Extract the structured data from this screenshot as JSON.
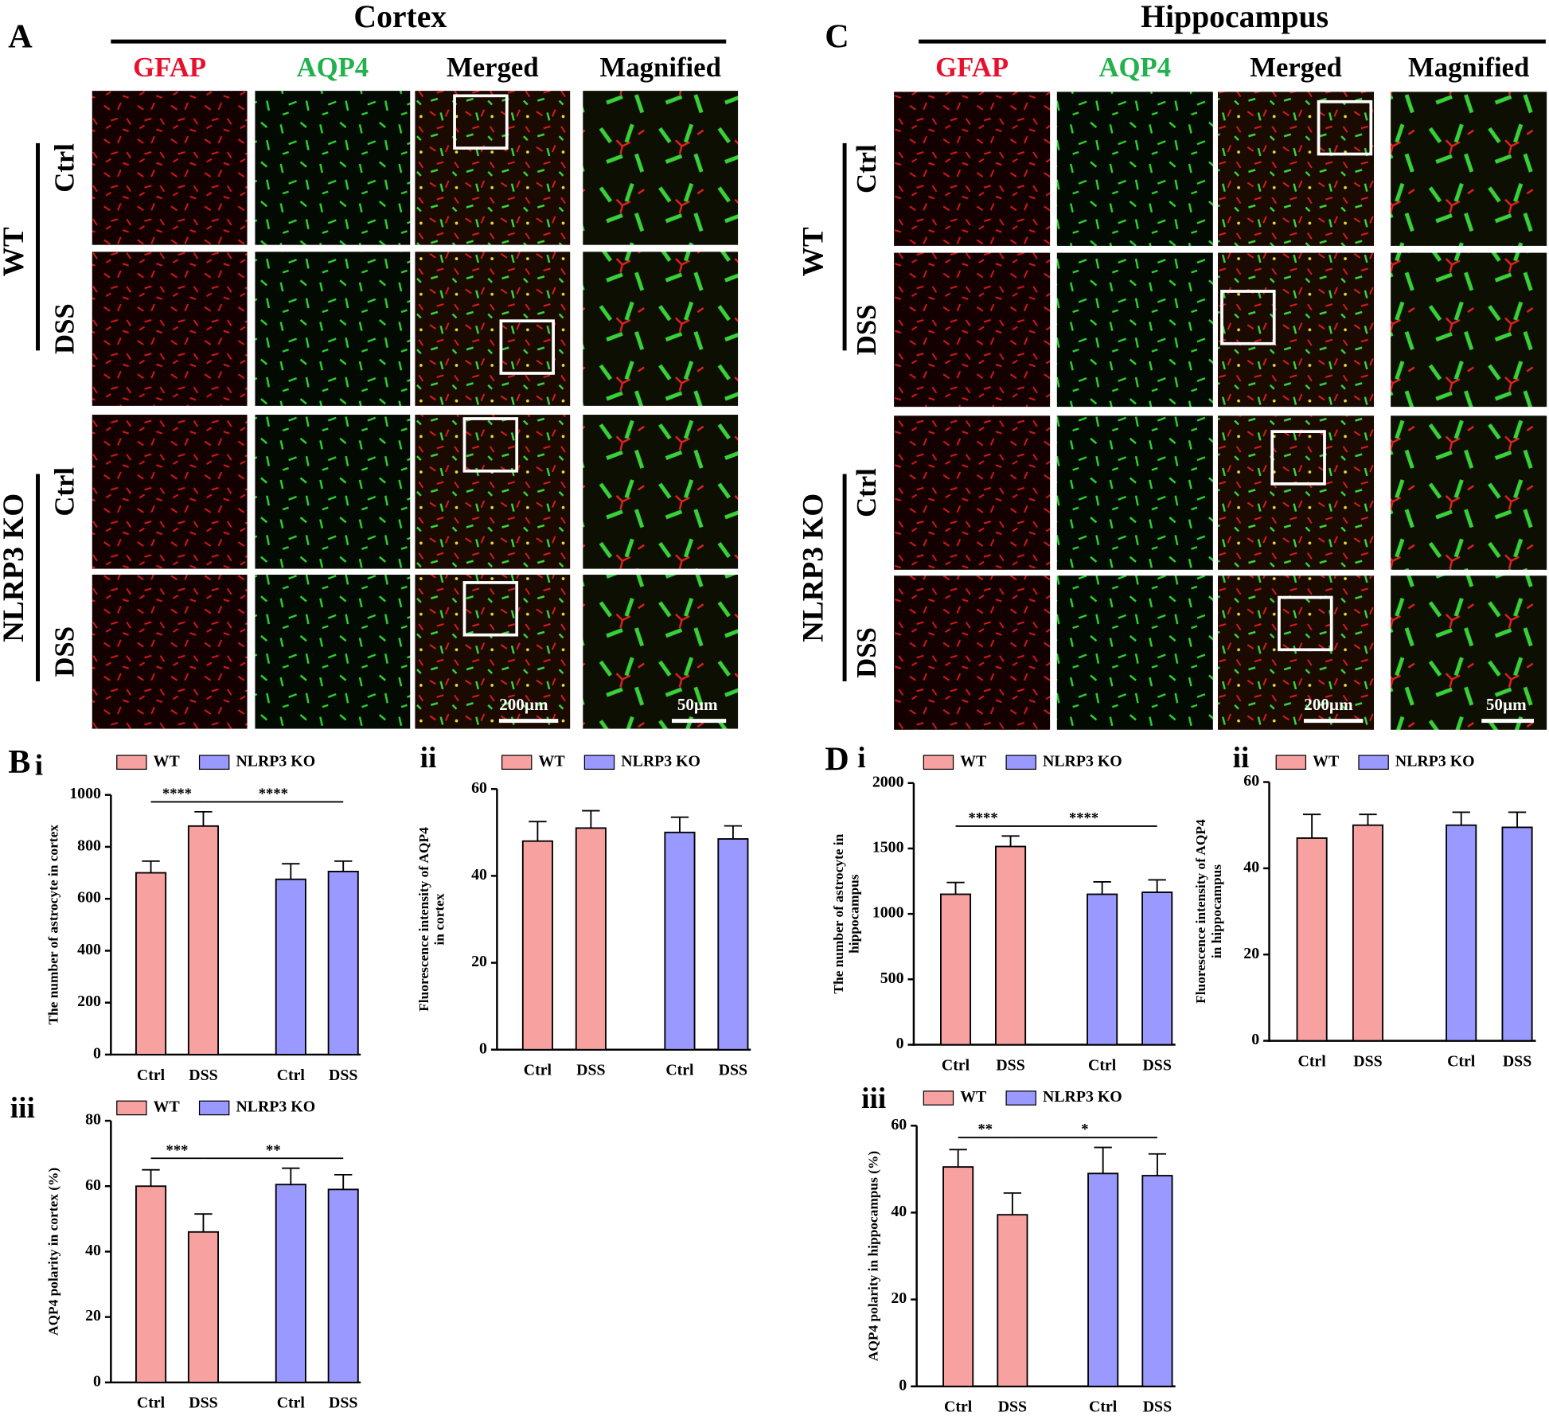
{
  "figure": {
    "panel_labels": [
      "A",
      "C",
      "B",
      "D"
    ],
    "sections": [
      {
        "title": "Cortex",
        "columns": [
          "GFAP",
          "AQP4",
          "Merged",
          "Magnified"
        ],
        "rows": [
          "Ctrl",
          "DSS",
          "Ctrl",
          "DSS"
        ],
        "groups": [
          "WT",
          "NLRP3 KO"
        ],
        "scale_bars": [
          "200µm",
          "50µm"
        ]
      },
      {
        "title": "Hippocampus",
        "columns": [
          "GFAP",
          "AQP4",
          "Merged",
          "Magnified"
        ],
        "rows": [
          "Ctrl",
          "DSS",
          "Ctrl",
          "DSS"
        ],
        "groups": [
          "WT",
          "NLRP3 KO"
        ],
        "scale_bars": [
          "200µm",
          "50µm"
        ]
      }
    ]
  },
  "chart_data": [
    {
      "type": "bar",
      "label": "i",
      "ylabel": [
        "The number of astrocyte in cortex"
      ],
      "categories": [
        "Ctrl",
        "DSS",
        "Ctrl",
        "DSS"
      ],
      "series": [
        {
          "name": "WT",
          "color": "#f7a1a1",
          "values": [
            700,
            880,
            null,
            null
          ],
          "errors": [
            45,
            55,
            null,
            null
          ]
        },
        {
          "name": "NLRP3 KO",
          "color": "#9999ff",
          "values": [
            null,
            null,
            675,
            705
          ],
          "errors": [
            null,
            null,
            60,
            40
          ]
        }
      ],
      "ylim": [
        0,
        1000
      ],
      "yticks": [
        0,
        200,
        400,
        600,
        800,
        1000
      ],
      "significance": [
        "****",
        "****"
      ]
    },
    {
      "type": "bar",
      "label": "ii",
      "ylabel": [
        "Fluorescence intensity of AQP4",
        "in cortex"
      ],
      "categories": [
        "Ctrl",
        "DSS",
        "Ctrl",
        "DSS"
      ],
      "series": [
        {
          "name": "WT",
          "color": "#f7a1a1",
          "values": [
            48,
            51,
            null,
            null
          ],
          "errors": [
            4.5,
            4,
            null,
            null
          ]
        },
        {
          "name": "NLRP3 KO",
          "color": "#9999ff",
          "values": [
            null,
            null,
            50,
            48.5
          ],
          "errors": [
            null,
            null,
            3.5,
            3
          ]
        }
      ],
      "ylim": [
        0,
        60
      ],
      "yticks": [
        0,
        20,
        40,
        60
      ],
      "significance": []
    },
    {
      "type": "bar",
      "label": "iii",
      "ylabel": [
        "AQP4 polarity in cortex (%)"
      ],
      "categories": [
        "Ctrl",
        "DSS",
        "Ctrl",
        "DSS"
      ],
      "series": [
        {
          "name": "WT",
          "color": "#f7a1a1",
          "values": [
            60,
            46,
            null,
            null
          ],
          "errors": [
            5,
            5.5,
            null,
            null
          ]
        },
        {
          "name": "NLRP3 KO",
          "color": "#9999ff",
          "values": [
            null,
            null,
            60.5,
            59
          ],
          "errors": [
            null,
            null,
            5,
            4.5
          ]
        }
      ],
      "ylim": [
        0,
        80
      ],
      "yticks": [
        0,
        20,
        40,
        60,
        80
      ],
      "significance": [
        "***",
        "**"
      ]
    },
    {
      "type": "bar",
      "label": "i",
      "ylabel": [
        "The number of  astrocyte in",
        "hippocampus"
      ],
      "categories": [
        "Ctrl",
        "DSS",
        "Ctrl",
        "DSS"
      ],
      "series": [
        {
          "name": "WT",
          "color": "#f7a1a1",
          "values": [
            1150,
            1515,
            null,
            null
          ],
          "errors": [
            90,
            80,
            null,
            null
          ]
        },
        {
          "name": "NLRP3 KO",
          "color": "#9999ff",
          "values": [
            null,
            null,
            1150,
            1165
          ],
          "errors": [
            null,
            null,
            95,
            95
          ]
        }
      ],
      "ylim": [
        0,
        2000
      ],
      "yticks": [
        0,
        500,
        1000,
        1500,
        2000
      ],
      "significance": [
        "****",
        "****"
      ]
    },
    {
      "type": "bar",
      "label": "ii",
      "ylabel": [
        "Fluorescence intensity of AQP4",
        "in hippocampus"
      ],
      "categories": [
        "Ctrl",
        "DSS",
        "Ctrl",
        "DSS"
      ],
      "series": [
        {
          "name": "WT",
          "color": "#f7a1a1",
          "values": [
            47,
            50,
            null,
            null
          ],
          "errors": [
            5.5,
            2.5,
            null,
            null
          ]
        },
        {
          "name": "NLRP3 KO",
          "color": "#9999ff",
          "values": [
            null,
            null,
            50,
            49.5
          ],
          "errors": [
            null,
            null,
            3,
            3.5
          ]
        }
      ],
      "ylim": [
        0,
        60
      ],
      "yticks": [
        0,
        20,
        40,
        60
      ],
      "significance": []
    },
    {
      "type": "bar",
      "label": "iii",
      "ylabel": [
        "AQP4 polarity in hippocampus (%)"
      ],
      "categories": [
        "Ctrl",
        "DSS",
        "Ctrl",
        "DSS"
      ],
      "series": [
        {
          "name": "WT",
          "color": "#f7a1a1",
          "values": [
            50.5,
            39.5,
            null,
            null
          ],
          "errors": [
            4,
            5,
            null,
            null
          ]
        },
        {
          "name": "NLRP3 KO",
          "color": "#9999ff",
          "values": [
            null,
            null,
            49,
            48.5
          ],
          "errors": [
            null,
            null,
            6,
            5
          ]
        }
      ],
      "ylim": [
        0,
        60
      ],
      "yticks": [
        0,
        20,
        40,
        60
      ],
      "significance": [
        "**",
        "*"
      ]
    }
  ]
}
